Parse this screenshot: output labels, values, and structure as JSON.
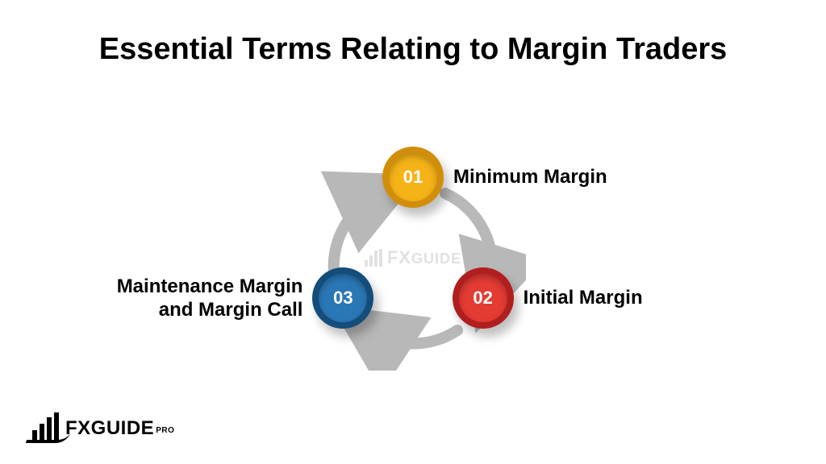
{
  "title": {
    "text": "Essential Terms Relating to Margin Traders",
    "fontsize": 38,
    "color": "#000000"
  },
  "diagram": {
    "type": "cycle",
    "radius": 100,
    "arrow_color": "#b8b8b8",
    "arrow_width": 14,
    "background_color": "#ffffff",
    "nodes": [
      {
        "num": "01",
        "label": "Minimum Margin",
        "angle_deg": -90,
        "outer_color": "#d28e0a",
        "inner_color": "#f5b318",
        "label_side": "right",
        "label_fontsize": 24
      },
      {
        "num": "02",
        "label": "Initial Margin",
        "angle_deg": 30,
        "outer_color": "#b01e1e",
        "inner_color": "#e43b33",
        "label_side": "right",
        "label_fontsize": 24
      },
      {
        "num": "03",
        "label": "Maintenance Margin\nand Margin Call",
        "angle_deg": 150,
        "outer_color": "#154d7a",
        "inner_color": "#2a77b5",
        "label_side": "left",
        "label_fontsize": 24
      }
    ],
    "center_watermark": {
      "text_main": "FX",
      "text_sub": "GUIDE",
      "color": "#c9c9c9",
      "opacity": 0.55,
      "fontsize": 22
    }
  },
  "footer_logo": {
    "text_main": "FX",
    "text_sub": "GUIDE",
    "text_pro": "PRO",
    "color": "#000000",
    "fontsize": 24
  }
}
